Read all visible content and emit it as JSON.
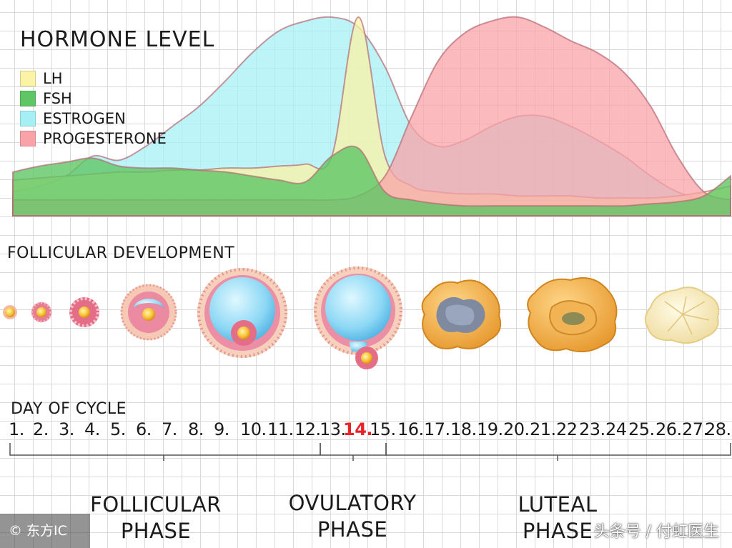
{
  "header": {
    "title": "HORMONE LEVEL"
  },
  "legend": [
    {
      "label": "LH",
      "color": "#fbf3a5"
    },
    {
      "label": "FSH",
      "color": "#5fc665"
    },
    {
      "label": "ESTROGEN",
      "color": "#a6f0f5"
    },
    {
      "label": "PROGESTERONE",
      "color": "#f9a3a8"
    }
  ],
  "chart_data": {
    "type": "area",
    "title": "HORMONE LEVEL",
    "xlabel": "DAY OF CYCLE",
    "ylabel": "",
    "x": [
      1,
      2,
      3,
      4,
      5,
      6,
      7,
      8,
      9,
      10,
      11,
      12,
      13,
      14,
      15,
      16,
      17,
      18,
      19,
      20,
      21,
      22,
      23,
      24,
      25,
      26,
      27,
      28
    ],
    "series": [
      {
        "name": "LH",
        "color": "#fbf3a5",
        "values": [
          0.18,
          0.19,
          0.2,
          0.21,
          0.22,
          0.22,
          0.23,
          0.23,
          0.24,
          0.24,
          0.25,
          0.26,
          0.3,
          1.0,
          0.3,
          0.15,
          0.12,
          0.11,
          0.11,
          0.1,
          0.1,
          0.1,
          0.09,
          0.09,
          0.09,
          0.1,
          0.12,
          0.15
        ]
      },
      {
        "name": "FSH",
        "color": "#5fc665",
        "values": [
          0.22,
          0.25,
          0.27,
          0.29,
          0.25,
          0.24,
          0.24,
          0.23,
          0.22,
          0.2,
          0.18,
          0.17,
          0.3,
          0.34,
          0.12,
          0.08,
          0.06,
          0.05,
          0.05,
          0.05,
          0.05,
          0.05,
          0.05,
          0.05,
          0.06,
          0.07,
          0.1,
          0.2
        ]
      },
      {
        "name": "ESTROGEN",
        "color": "#a6f0f5",
        "values": [
          0.12,
          0.15,
          0.2,
          0.3,
          0.28,
          0.35,
          0.45,
          0.55,
          0.68,
          0.82,
          0.93,
          0.98,
          1.0,
          0.95,
          0.75,
          0.45,
          0.35,
          0.38,
          0.45,
          0.5,
          0.5,
          0.45,
          0.38,
          0.3,
          0.2,
          0.12,
          0.08,
          0.06
        ]
      },
      {
        "name": "PROGESTERONE",
        "color": "#f9a3a8",
        "values": [
          0.08,
          0.08,
          0.08,
          0.08,
          0.08,
          0.08,
          0.08,
          0.08,
          0.08,
          0.08,
          0.08,
          0.08,
          0.08,
          0.1,
          0.2,
          0.5,
          0.78,
          0.92,
          0.98,
          1.0,
          0.95,
          0.88,
          0.82,
          0.72,
          0.55,
          0.3,
          0.12,
          0.08
        ]
      }
    ],
    "ylim": [
      0,
      1
    ],
    "grid": true
  },
  "follicular": {
    "label": "FOLLICULAR DEVELOPMENT",
    "stages": [
      "primordial",
      "primary",
      "secondary",
      "early-antral",
      "antral",
      "ovulation",
      "corpus-luteum-early",
      "corpus-luteum-mature",
      "corpus-albicans"
    ]
  },
  "cycle": {
    "label": "DAY OF CYCLE",
    "days": [
      "1.",
      "2.",
      "3.",
      "4.",
      "5.",
      "6.",
      "7.",
      "8.",
      "9.",
      "10.",
      "11.",
      "12.",
      "13.",
      "14.",
      "15.",
      "16.",
      "17.",
      "18.",
      "19.",
      "20.",
      "21.",
      "22",
      "23.",
      "24",
      "25.",
      "26.",
      "27.",
      "28."
    ],
    "highlight_day": "14.",
    "highlight_color": "#e8232a"
  },
  "phases": [
    {
      "line1": "FOLLICULAR",
      "line2": "PHASE"
    },
    {
      "line1": "OVULATORY",
      "line2": "PHASE"
    },
    {
      "line1": "LUTEAL",
      "line2": "PHASE"
    }
  ],
  "watermarks": {
    "left": "© 东方IC",
    "right": "头条号 / 付虹医生"
  }
}
